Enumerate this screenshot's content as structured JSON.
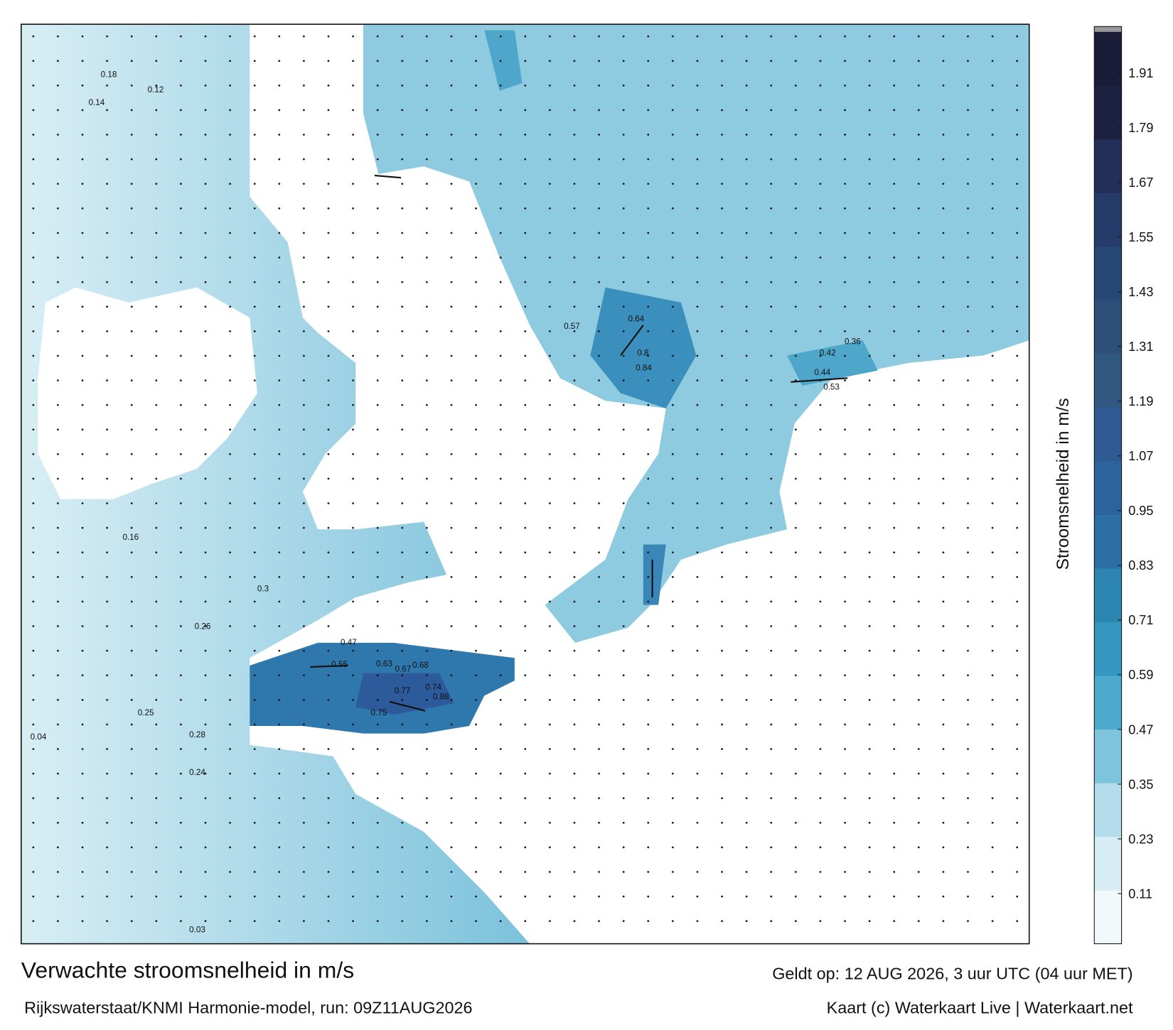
{
  "title": "Verwachte stroomsnelheid in m/s",
  "subtitle": "Rijkswaterstaat/KNMI Harmonie-model, run: 09Z11AUG2026",
  "valid": "Geldt op: 12 AUG 2026, 3 uur UTC (04 uur MET)",
  "credit": "Kaart (c) Waterkaart Live | Waterkaart.net",
  "colorbar": {
    "label": "Stroomsnelheid in m/s",
    "lim": [
      0,
      2
    ],
    "ticks": [
      0.11,
      0.23,
      0.35,
      0.47,
      0.59,
      0.71,
      0.83,
      0.95,
      1.07,
      1.19,
      1.31,
      1.43,
      1.55,
      1.67,
      1.79,
      1.91
    ],
    "colors": [
      "#f2f9fb",
      "#d6edf4",
      "#b5dcea",
      "#7ec4dc",
      "#4eaacd",
      "#3497c0",
      "#2d85b2",
      "#2b6fa4",
      "#2d639d",
      "#2f5b92",
      "#2f577f",
      "#2d4f7a",
      "#274777",
      "#253c6b",
      "#232f58",
      "#1d2240",
      "#1a1c38"
    ]
  },
  "map": {
    "labels": [
      0.88,
      0.74,
      0.77,
      0.75,
      0.68,
      0.67,
      0.63,
      0.55,
      0.47,
      0.84,
      0.8,
      0.64,
      0.57,
      0.44,
      0.53,
      0.36,
      0.42,
      0.26,
      0.25,
      0.28,
      0.3,
      0.04,
      0.03,
      0.14,
      0.18,
      0.12,
      0.24,
      0.16
    ]
  }
}
